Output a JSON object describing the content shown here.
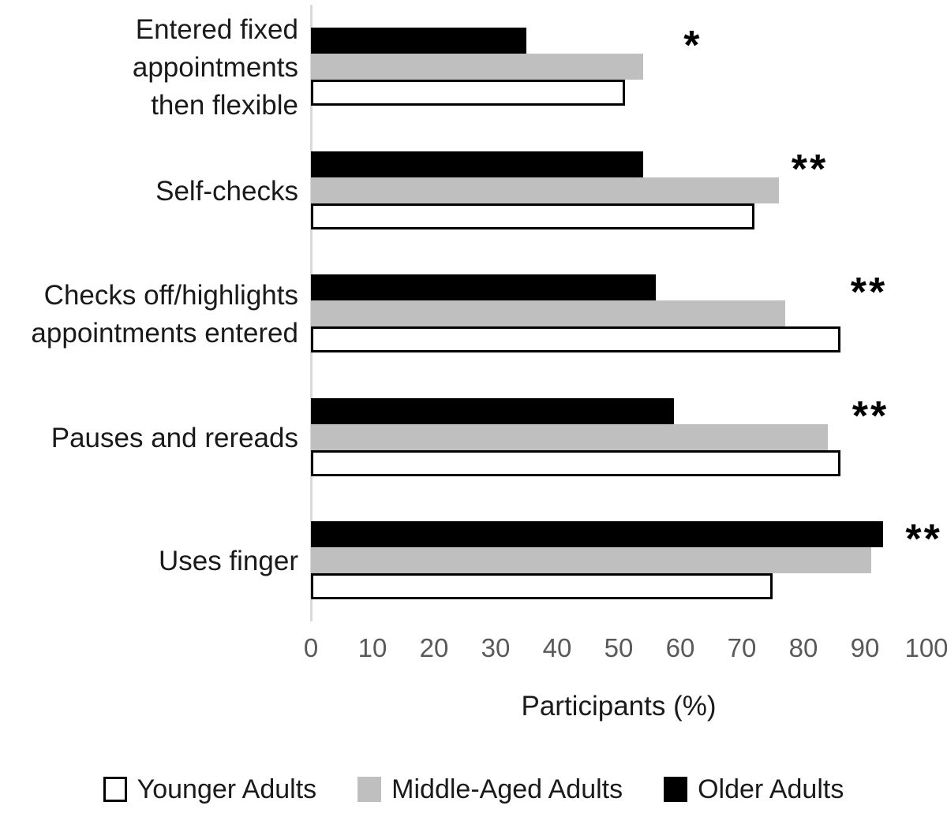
{
  "chart_data": {
    "type": "bar",
    "orientation": "horizontal",
    "title": "",
    "xlabel": "Participants (%)",
    "ylabel": "",
    "xlim": [
      0,
      100
    ],
    "xticks": [
      0,
      10,
      20,
      30,
      40,
      50,
      60,
      70,
      80,
      90,
      100
    ],
    "grid": false,
    "legend_position": "bottom",
    "categories": [
      "Entered fixed appointments then flexible",
      "Self-checks",
      "Checks off/highlights appointments entered",
      "Pauses and rereads",
      "Uses finger"
    ],
    "category_label_lines": [
      [
        "Entered fixed",
        "appointments",
        "then flexible"
      ],
      [
        "Self-checks"
      ],
      [
        "Checks off/highlights",
        "appointments entered"
      ],
      [
        "Pauses and rereads"
      ],
      [
        "Uses finger"
      ]
    ],
    "series": [
      {
        "name": "Younger Adults",
        "color": "#ffffff",
        "border_color": "#000000",
        "values": [
          51,
          72,
          86,
          86,
          75
        ]
      },
      {
        "name": "Middle-Aged Adults",
        "color": "#bfbfbf",
        "values": [
          54,
          76,
          77,
          84,
          91
        ]
      },
      {
        "name": "Older Adults",
        "color": "#000000",
        "values": [
          35,
          54,
          56,
          59,
          93
        ]
      }
    ],
    "bar_order_top_to_bottom": [
      "Older Adults",
      "Middle-Aged Adults",
      "Younger Adults"
    ],
    "significance_annotations": [
      "*",
      "**",
      "**",
      "**",
      "**"
    ],
    "colors": {
      "axis_line": "#d9d9d9",
      "tick_label": "#595959",
      "text": "#1a1a1a",
      "background": "#ffffff"
    }
  }
}
